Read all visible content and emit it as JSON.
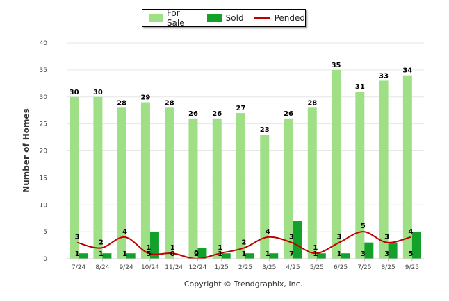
{
  "chart_data": {
    "type": "bar",
    "categories": [
      "7/24",
      "8/24",
      "9/24",
      "10/24",
      "11/24",
      "12/24",
      "1/25",
      "2/25",
      "3/25",
      "4/25",
      "5/25",
      "6/25",
      "7/25",
      "8/25",
      "9/25"
    ],
    "series": [
      {
        "name": "For Sale",
        "kind": "bar",
        "color": "#9fdf86",
        "values": [
          30,
          30,
          28,
          29,
          28,
          26,
          26,
          27,
          23,
          26,
          28,
          35,
          31,
          33,
          34
        ]
      },
      {
        "name": "Sold",
        "kind": "bar",
        "color": "#12a12a",
        "values": [
          1,
          1,
          1,
          5,
          0,
          2,
          1,
          1,
          1,
          7,
          1,
          1,
          3,
          3,
          5
        ]
      },
      {
        "name": "Pended",
        "kind": "line",
        "color": "#c00000",
        "values": [
          3,
          2,
          4,
          1,
          1,
          0,
          1,
          2,
          4,
          3,
          1,
          3,
          5,
          3,
          4
        ]
      }
    ],
    "ylabel": "Number of Homes",
    "xlabel": "",
    "ylim": [
      0,
      40
    ],
    "yticks": [
      0,
      5,
      10,
      15,
      20,
      25,
      30,
      35,
      40
    ],
    "grid": true,
    "legend_position": "top-center"
  },
  "legend": {
    "for_sale": "For Sale",
    "sold": "Sold",
    "pended": "Pended"
  },
  "footer": {
    "copyright": "Copyright © Trendgraphix, Inc."
  }
}
